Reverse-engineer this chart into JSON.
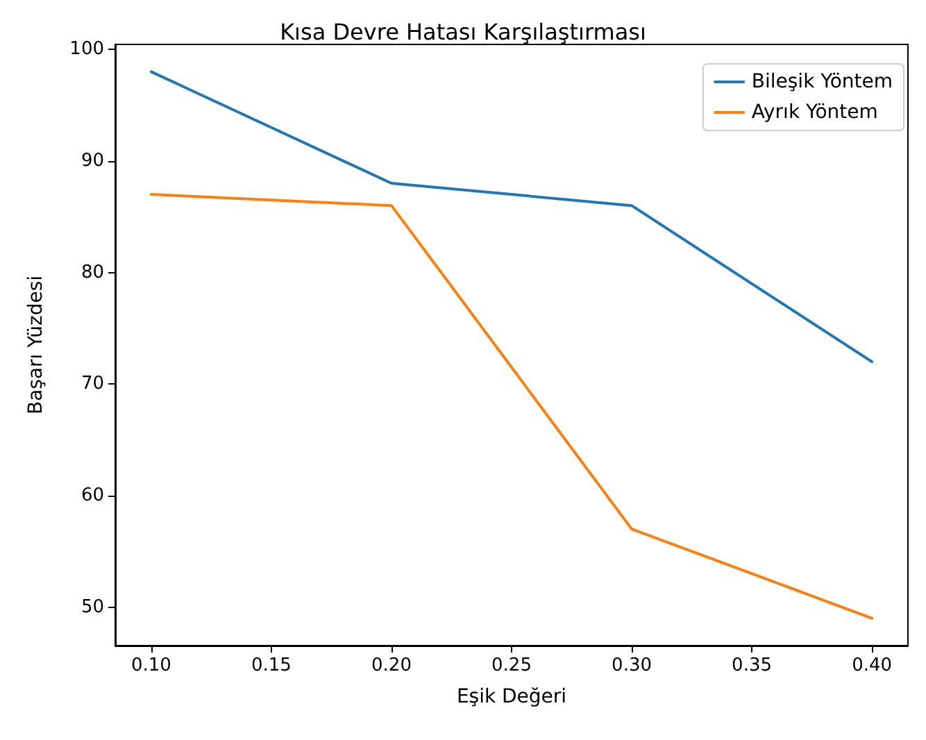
{
  "chart_data": {
    "type": "line",
    "title": "Kısa Devre Hatası Karşılaştırması",
    "xlabel": "Eşik Değeri",
    "ylabel": "Başarı Yüzdesi",
    "x": [
      0.1,
      0.2,
      0.3,
      0.4
    ],
    "series": [
      {
        "name": "Bileşik Yöntem",
        "color": "#1f77b4",
        "values": [
          98,
          88,
          86,
          72
        ]
      },
      {
        "name": "Ayrık Yöntem",
        "color": "#ff7f0e",
        "values": [
          87,
          86,
          57,
          49
        ]
      }
    ],
    "xlim": [
      0.085,
      0.415
    ],
    "xticks": [
      {
        "value": 0.1,
        "label": "0.10"
      },
      {
        "value": 0.15,
        "label": "0.15"
      },
      {
        "value": 0.2,
        "label": "0.20"
      },
      {
        "value": 0.25,
        "label": "0.25"
      },
      {
        "value": 0.3,
        "label": "0.30"
      },
      {
        "value": 0.35,
        "label": "0.35"
      },
      {
        "value": 0.4,
        "label": "0.40"
      }
    ],
    "ylim": [
      46.55,
      100.45
    ],
    "yticks": [
      50,
      60,
      70,
      80,
      90,
      100
    ],
    "grid": false,
    "legend": "top right",
    "marker": "none",
    "line_style": "solid"
  }
}
